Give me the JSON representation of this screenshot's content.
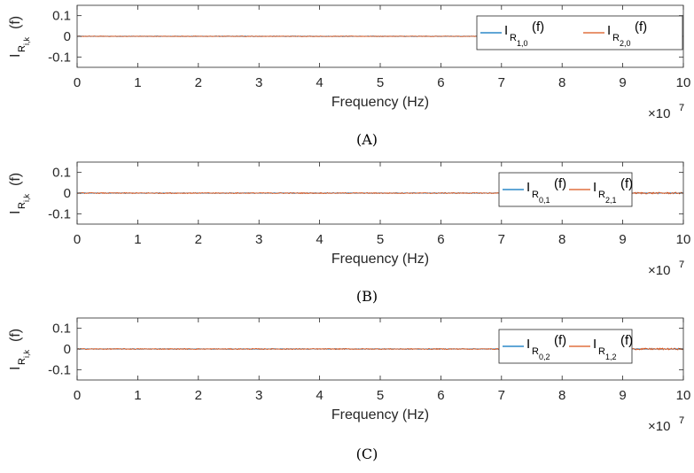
{
  "colors": {
    "series1": "#0072BD",
    "series2": "#D95319",
    "axis": "#262626"
  },
  "chart_data": [
    {
      "type": "line",
      "caption": "(A)",
      "xlabel": "Frequency (Hz)",
      "ylabel_main": "I",
      "ylabel_sub": "R",
      "ylabel_subsub": "i,k",
      "ylabel_arg": "(f)",
      "x_multiplier": "×10",
      "x_multiplier_exp": "7",
      "xlim": [
        0,
        100000000
      ],
      "ylim": [
        -0.15,
        0.15
      ],
      "xticks": [
        0,
        10000000,
        20000000,
        30000000,
        40000000,
        50000000,
        60000000,
        70000000,
        80000000,
        90000000,
        100000000
      ],
      "xtick_labels": [
        "0",
        "1",
        "2",
        "3",
        "4",
        "5",
        "6",
        "7",
        "8",
        "9",
        "10"
      ],
      "yticks": [
        0.1,
        0,
        -0.1
      ],
      "ytick_labels": [
        "0.1",
        "0",
        "-0.1"
      ],
      "legend_position": "top-right",
      "noise_amplitude": [
        0.0012,
        0.0012
      ],
      "series": [
        {
          "name_main": "I",
          "name_sub": "R",
          "name_subsub": "1,0",
          "name_arg": "(f)",
          "values": [
            0,
            0
          ]
        },
        {
          "name_main": "I",
          "name_sub": "R",
          "name_subsub": "2,0",
          "name_arg": "(f)",
          "values": [
            0,
            0
          ]
        }
      ]
    },
    {
      "type": "line",
      "caption": "(B)",
      "xlabel": "Frequency (Hz)",
      "ylabel_main": "I",
      "ylabel_sub": "R",
      "ylabel_subsub": "i,k",
      "ylabel_arg": "(f)",
      "x_multiplier": "×10",
      "x_multiplier_exp": "7",
      "xlim": [
        0,
        100000000
      ],
      "ylim": [
        -0.15,
        0.15
      ],
      "xticks": [
        0,
        10000000,
        20000000,
        30000000,
        40000000,
        50000000,
        60000000,
        70000000,
        80000000,
        90000000,
        100000000
      ],
      "xtick_labels": [
        "0",
        "1",
        "2",
        "3",
        "4",
        "5",
        "6",
        "7",
        "8",
        "9",
        "10"
      ],
      "yticks": [
        0.1,
        0,
        -0.1
      ],
      "ytick_labels": [
        "0.1",
        "0",
        "-0.1"
      ],
      "legend_position": "top-right",
      "noise_amplitude": [
        0.0012,
        0.0022
      ],
      "series": [
        {
          "name_main": "I",
          "name_sub": "R",
          "name_subsub": "0,1",
          "name_arg": "(f)",
          "values": [
            0,
            0
          ]
        },
        {
          "name_main": "I",
          "name_sub": "R",
          "name_subsub": "2,1",
          "name_arg": "(f)",
          "values": [
            0,
            0
          ]
        }
      ]
    },
    {
      "type": "line",
      "caption": "(C)",
      "xlabel": "Frequency (Hz)",
      "ylabel_main": "I",
      "ylabel_sub": "R",
      "ylabel_subsub": "i,k",
      "ylabel_arg": "(f)",
      "x_multiplier": "×10",
      "x_multiplier_exp": "7",
      "xlim": [
        0,
        100000000
      ],
      "ylim": [
        -0.15,
        0.15
      ],
      "xticks": [
        0,
        10000000,
        20000000,
        30000000,
        40000000,
        50000000,
        60000000,
        70000000,
        80000000,
        90000000,
        100000000
      ],
      "xtick_labels": [
        "0",
        "1",
        "2",
        "3",
        "4",
        "5",
        "6",
        "7",
        "8",
        "9",
        "10"
      ],
      "yticks": [
        0.1,
        0,
        -0.1
      ],
      "ytick_labels": [
        "0.1",
        "0",
        "-0.1"
      ],
      "legend_position": "top-right",
      "noise_amplitude": [
        0.0012,
        0.0022
      ],
      "series": [
        {
          "name_main": "I",
          "name_sub": "R",
          "name_subsub": "0,2",
          "name_arg": "(f)",
          "values": [
            0,
            0
          ]
        },
        {
          "name_main": "I",
          "name_sub": "R",
          "name_subsub": "1,2",
          "name_arg": "(f)",
          "values": [
            0,
            0
          ]
        }
      ]
    }
  ]
}
